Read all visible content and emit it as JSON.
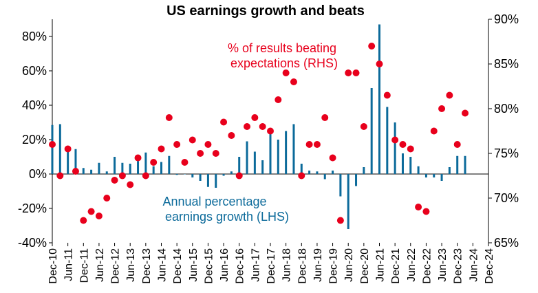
{
  "chart_data": {
    "type": "bar+scatter",
    "title": "US earnings growth and beats",
    "grid": false,
    "legend": "none",
    "x_tick_labels": [
      "Dec-10",
      "Jun-11",
      "Dec-11",
      "Jun-12",
      "Dec-12",
      "Jun-13",
      "Dec-13",
      "Jun-14",
      "Dec-14",
      "Jun-15",
      "Dec-15",
      "Jun-16",
      "Dec-16",
      "Jun-17",
      "Dec-17",
      "Jun-18",
      "Dec-18",
      "Jun-19",
      "Dec-19",
      "Jun-20",
      "Dec-20",
      "Jun-21",
      "Dec-21",
      "Jun-22",
      "Dec-22",
      "Jun-23",
      "Dec-23",
      "Jun-24",
      "Dec-24"
    ],
    "left_axis": {
      "ylim": [
        -40,
        90
      ],
      "ticks": [
        "-40%",
        "-20%",
        "0%",
        "20%",
        "40%",
        "60%",
        "80%"
      ],
      "tick_values": [
        -40,
        -20,
        0,
        20,
        40,
        60,
        80
      ]
    },
    "right_axis": {
      "ylim": [
        65,
        90
      ],
      "ticks": [
        "65%",
        "70%",
        "75%",
        "80%",
        "85%",
        "90%"
      ],
      "tick_values": [
        65,
        70,
        75,
        80,
        85,
        90
      ]
    },
    "annotations": {
      "rhs_line1": "% of results beating",
      "rhs_line2": "expectations (RHS)",
      "lhs_line1": "Annual percentage",
      "lhs_line2": "earnings growth (LHS)"
    },
    "colors": {
      "bars": "#0b6a9a",
      "dots": "#e8001c"
    },
    "series": [
      {
        "name": "Annual percentage earnings growth (LHS)",
        "type": "bar",
        "axis": "left",
        "values": [
          28.5,
          29,
          13.5,
          14.5,
          3.5,
          2.5,
          6.5,
          1.5,
          10,
          6.5,
          6,
          7.5,
          12.5,
          4.5,
          7,
          10.5,
          -0.5,
          0,
          -2,
          -4,
          -7.5,
          -8,
          -1,
          1.5,
          10,
          19,
          13,
          8,
          24,
          20,
          25,
          29,
          6,
          2,
          1.5,
          -3,
          2,
          -13,
          -32,
          -7,
          4,
          50,
          87,
          39,
          30,
          12,
          10,
          4.5,
          -2,
          -2,
          -4,
          4,
          10.5,
          10.5
        ]
      },
      {
        "name": "% of results beating expectations (RHS)",
        "type": "scatter",
        "axis": "right",
        "values": [
          76,
          72.5,
          75.5,
          73,
          67.5,
          68.5,
          68,
          70,
          72,
          72.5,
          71.5,
          74.5,
          72.5,
          74,
          75.5,
          79,
          76,
          74,
          76.5,
          75,
          76,
          75,
          78.5,
          77,
          72.5,
          78,
          79,
          78,
          77.5,
          81,
          84,
          83,
          72.5,
          76,
          76,
          79,
          74.5,
          67.5,
          84,
          84,
          78,
          87,
          85,
          81.5,
          76.5,
          76,
          75.5,
          69,
          68.5,
          77.5,
          80,
          81.5,
          76,
          79.5
        ]
      }
    ]
  }
}
